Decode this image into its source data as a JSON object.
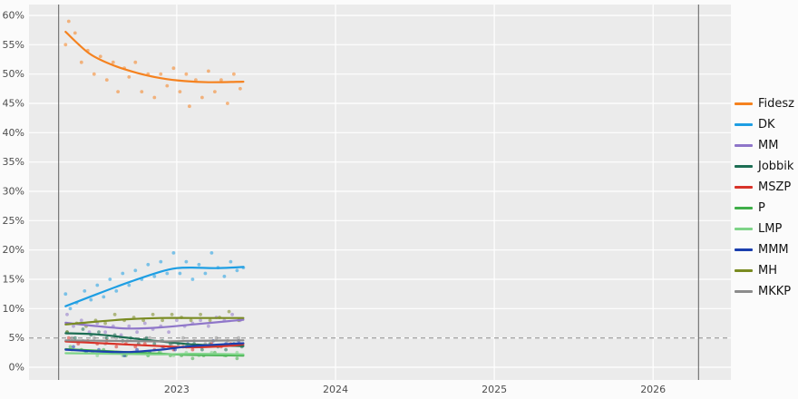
{
  "chart_data": {
    "type": "scatter",
    "title": "",
    "xlabel": "",
    "ylabel": "",
    "ylim": [
      0,
      60
    ],
    "xlim": [
      2022.07,
      2026.49
    ],
    "y_ticks": [
      0,
      5,
      10,
      15,
      20,
      25,
      30,
      35,
      40,
      45,
      50,
      55,
      60
    ],
    "y_tick_suffix": "%",
    "x_ticks": [
      2023,
      2024,
      2025,
      2026
    ],
    "threshold_y": 5,
    "event_lines_x": [
      2022.257,
      2026.286
    ],
    "grid": true,
    "legend_position": "right",
    "panel_bg": "#ebebeb",
    "grid_color": "#ffffff",
    "tick_label_color": "#4d4d4d",
    "threshold_color": "#a8a8a8",
    "event_line_color": "#5f5f5f",
    "series": [
      {
        "name": "Fidesz",
        "color": "#f5821f",
        "trend": [
          [
            2022.3,
            57.2
          ],
          [
            2022.45,
            53.5
          ],
          [
            2022.6,
            51.5
          ],
          [
            2022.75,
            50.2
          ],
          [
            2022.9,
            49.3
          ],
          [
            2023.05,
            48.8
          ],
          [
            2023.2,
            48.6
          ],
          [
            2023.42,
            48.7
          ]
        ],
        "points": [
          [
            2022.3,
            55
          ],
          [
            2022.32,
            59
          ],
          [
            2022.36,
            57
          ],
          [
            2022.4,
            52
          ],
          [
            2022.44,
            54
          ],
          [
            2022.48,
            50
          ],
          [
            2022.52,
            53
          ],
          [
            2022.56,
            49
          ],
          [
            2022.6,
            52
          ],
          [
            2022.63,
            47
          ],
          [
            2022.67,
            51
          ],
          [
            2022.7,
            49.5
          ],
          [
            2022.74,
            52
          ],
          [
            2022.78,
            47
          ],
          [
            2022.82,
            50
          ],
          [
            2022.86,
            46
          ],
          [
            2022.9,
            50
          ],
          [
            2022.94,
            48
          ],
          [
            2022.98,
            51
          ],
          [
            2023.02,
            47
          ],
          [
            2023.06,
            50
          ],
          [
            2023.08,
            44.5
          ],
          [
            2023.12,
            49
          ],
          [
            2023.16,
            46
          ],
          [
            2023.2,
            50.5
          ],
          [
            2023.24,
            47
          ],
          [
            2023.28,
            49
          ],
          [
            2023.32,
            45
          ],
          [
            2023.36,
            50
          ],
          [
            2023.4,
            47.5
          ]
        ]
      },
      {
        "name": "DK",
        "color": "#1e9ee3",
        "trend": [
          [
            2022.3,
            10.4
          ],
          [
            2022.5,
            12.5
          ],
          [
            2022.7,
            14.5
          ],
          [
            2022.9,
            16.3
          ],
          [
            2023.0,
            16.9
          ],
          [
            2023.1,
            17.0
          ],
          [
            2023.25,
            16.9
          ],
          [
            2023.42,
            17.1
          ]
        ],
        "points": [
          [
            2022.3,
            12.5
          ],
          [
            2022.33,
            10
          ],
          [
            2022.37,
            11
          ],
          [
            2022.42,
            13
          ],
          [
            2022.46,
            11.5
          ],
          [
            2022.5,
            14
          ],
          [
            2022.54,
            12
          ],
          [
            2022.58,
            15
          ],
          [
            2022.62,
            13
          ],
          [
            2022.66,
            16
          ],
          [
            2022.7,
            14
          ],
          [
            2022.74,
            16.5
          ],
          [
            2022.78,
            15
          ],
          [
            2022.82,
            17.5
          ],
          [
            2022.86,
            15.5
          ],
          [
            2022.9,
            18
          ],
          [
            2022.94,
            16
          ],
          [
            2022.98,
            19.5
          ],
          [
            2023.02,
            16
          ],
          [
            2023.06,
            18
          ],
          [
            2023.1,
            15
          ],
          [
            2023.14,
            17.5
          ],
          [
            2023.18,
            16
          ],
          [
            2023.22,
            19.5
          ],
          [
            2023.26,
            17
          ],
          [
            2023.3,
            15.5
          ],
          [
            2023.34,
            18
          ],
          [
            2023.38,
            16.5
          ],
          [
            2023.42,
            17
          ]
        ]
      },
      {
        "name": "MM",
        "color": "#8f76c9",
        "trend": [
          [
            2022.3,
            7.6
          ],
          [
            2022.5,
            7.0
          ],
          [
            2022.7,
            6.6
          ],
          [
            2022.9,
            6.8
          ],
          [
            2023.1,
            7.3
          ],
          [
            2023.42,
            8.1
          ]
        ],
        "points": [
          [
            2022.31,
            9
          ],
          [
            2022.35,
            7
          ],
          [
            2022.4,
            8
          ],
          [
            2022.45,
            6
          ],
          [
            2022.5,
            7.5
          ],
          [
            2022.55,
            6
          ],
          [
            2022.6,
            7
          ],
          [
            2022.65,
            5.5
          ],
          [
            2022.7,
            7
          ],
          [
            2022.75,
            6
          ],
          [
            2022.8,
            7.5
          ],
          [
            2022.85,
            6.5
          ],
          [
            2022.9,
            7
          ],
          [
            2022.95,
            6
          ],
          [
            2023.0,
            8
          ],
          [
            2023.05,
            7
          ],
          [
            2023.1,
            7.5
          ],
          [
            2023.15,
            8
          ],
          [
            2023.2,
            7
          ],
          [
            2023.25,
            8.5
          ],
          [
            2023.3,
            8
          ],
          [
            2023.35,
            9
          ],
          [
            2023.4,
            8
          ]
        ]
      },
      {
        "name": "Jobbik",
        "color": "#1d6e54",
        "trend": [
          [
            2022.3,
            5.8
          ],
          [
            2022.5,
            5.6
          ],
          [
            2022.7,
            5.0
          ],
          [
            2022.9,
            4.4
          ],
          [
            2023.1,
            3.9
          ],
          [
            2023.42,
            3.6
          ]
        ],
        "points": [
          [
            2022.31,
            6
          ],
          [
            2022.36,
            5
          ],
          [
            2022.41,
            6.5
          ],
          [
            2022.46,
            5.5
          ],
          [
            2022.51,
            6
          ],
          [
            2022.56,
            5
          ],
          [
            2022.61,
            5.5
          ],
          [
            2022.66,
            4.5
          ],
          [
            2022.71,
            5
          ],
          [
            2022.76,
            4
          ],
          [
            2022.81,
            5
          ],
          [
            2022.86,
            4
          ],
          [
            2022.91,
            4.5
          ],
          [
            2022.96,
            4
          ],
          [
            2023.01,
            4
          ],
          [
            2023.06,
            3.5
          ],
          [
            2023.11,
            4
          ],
          [
            2023.16,
            3
          ],
          [
            2023.21,
            4
          ],
          [
            2023.26,
            3.5
          ],
          [
            2023.31,
            3
          ],
          [
            2023.36,
            4
          ],
          [
            2023.41,
            3.5
          ]
        ]
      },
      {
        "name": "MSZP",
        "color": "#d8332a",
        "trend": [
          [
            2022.3,
            4.4
          ],
          [
            2022.6,
            4.0
          ],
          [
            2022.9,
            3.6
          ],
          [
            2023.1,
            3.4
          ],
          [
            2023.3,
            3.6
          ],
          [
            2023.42,
            3.9
          ]
        ],
        "points": [
          [
            2022.32,
            5
          ],
          [
            2022.38,
            4
          ],
          [
            2022.44,
            4.5
          ],
          [
            2022.5,
            4
          ],
          [
            2022.56,
            4.5
          ],
          [
            2022.62,
            3.5
          ],
          [
            2022.68,
            4
          ],
          [
            2022.74,
            3.5
          ],
          [
            2022.8,
            4
          ],
          [
            2022.86,
            3
          ],
          [
            2022.92,
            3.5
          ],
          [
            2022.98,
            3
          ],
          [
            2023.04,
            3.5
          ],
          [
            2023.1,
            3
          ],
          [
            2023.16,
            3.5
          ],
          [
            2023.22,
            4
          ],
          [
            2023.28,
            3.5
          ],
          [
            2023.34,
            4
          ],
          [
            2023.4,
            4
          ]
        ]
      },
      {
        "name": "P",
        "color": "#3fae49",
        "trend": [
          [
            2022.3,
            3.1
          ],
          [
            2022.6,
            2.7
          ],
          [
            2022.9,
            2.3
          ],
          [
            2023.1,
            2.1
          ],
          [
            2023.42,
            2.0
          ]
        ],
        "points": [
          [
            2022.33,
            3.5
          ],
          [
            2022.4,
            3
          ],
          [
            2022.47,
            2.5
          ],
          [
            2022.54,
            3
          ],
          [
            2022.61,
            2.5
          ],
          [
            2022.68,
            2
          ],
          [
            2022.75,
            2.5
          ],
          [
            2022.82,
            2
          ],
          [
            2022.89,
            2.5
          ],
          [
            2022.96,
            2
          ],
          [
            2023.03,
            2
          ],
          [
            2023.1,
            1.5
          ],
          [
            2023.17,
            2
          ],
          [
            2023.24,
            2.5
          ],
          [
            2023.31,
            2
          ],
          [
            2023.38,
            1.5
          ]
        ]
      },
      {
        "name": "LMP",
        "color": "#7ed488",
        "trend": [
          [
            2022.3,
            2.4
          ],
          [
            2022.6,
            2.3
          ],
          [
            2022.9,
            2.2
          ],
          [
            2023.1,
            2.3
          ],
          [
            2023.42,
            2.2
          ]
        ],
        "points": [
          [
            2022.34,
            3
          ],
          [
            2022.42,
            2.5
          ],
          [
            2022.5,
            2
          ],
          [
            2022.58,
            2.5
          ],
          [
            2022.66,
            2
          ],
          [
            2022.74,
            2.5
          ],
          [
            2022.82,
            2
          ],
          [
            2022.9,
            2.5
          ],
          [
            2022.98,
            2
          ],
          [
            2023.06,
            2.5
          ],
          [
            2023.14,
            2
          ],
          [
            2023.22,
            2.5
          ],
          [
            2023.3,
            2
          ],
          [
            2023.38,
            2.5
          ]
        ]
      },
      {
        "name": "MMM",
        "color": "#1b3fae",
        "trend": [
          [
            2022.3,
            3.0
          ],
          [
            2022.5,
            2.7
          ],
          [
            2022.7,
            2.6
          ],
          [
            2022.9,
            3.0
          ],
          [
            2023.1,
            3.6
          ],
          [
            2023.42,
            4.1
          ]
        ],
        "points": [
          [
            2022.35,
            3.5
          ],
          [
            2022.43,
            2.5
          ],
          [
            2022.51,
            3
          ],
          [
            2022.59,
            2.5
          ],
          [
            2022.67,
            2
          ],
          [
            2022.75,
            3
          ],
          [
            2022.83,
            2.5
          ],
          [
            2022.91,
            3.5
          ],
          [
            2022.99,
            3
          ],
          [
            2023.07,
            4
          ],
          [
            2023.15,
            3.5
          ],
          [
            2023.23,
            4.5
          ],
          [
            2023.31,
            4
          ],
          [
            2023.39,
            4.5
          ]
        ]
      },
      {
        "name": "MH",
        "color": "#7a8b22",
        "trend": [
          [
            2022.3,
            7.3
          ],
          [
            2022.5,
            7.8
          ],
          [
            2022.7,
            8.2
          ],
          [
            2022.9,
            8.4
          ],
          [
            2023.1,
            8.4
          ],
          [
            2023.42,
            8.4
          ]
        ],
        "points": [
          [
            2022.31,
            6
          ],
          [
            2022.37,
            7.5
          ],
          [
            2022.43,
            7
          ],
          [
            2022.49,
            8
          ],
          [
            2022.55,
            7.5
          ],
          [
            2022.61,
            9
          ],
          [
            2022.67,
            8
          ],
          [
            2022.73,
            8.5
          ],
          [
            2022.79,
            8
          ],
          [
            2022.85,
            9
          ],
          [
            2022.91,
            8
          ],
          [
            2022.97,
            9
          ],
          [
            2023.03,
            8.5
          ],
          [
            2023.09,
            8
          ],
          [
            2023.15,
            9
          ],
          [
            2023.21,
            8
          ],
          [
            2023.27,
            8.5
          ],
          [
            2023.33,
            9.5
          ],
          [
            2023.39,
            8
          ]
        ]
      },
      {
        "name": "MKKP",
        "color": "#8c8c8c",
        "trend": [
          [
            2022.3,
            4.6
          ],
          [
            2022.6,
            4.5
          ],
          [
            2022.9,
            4.4
          ],
          [
            2023.1,
            4.5
          ],
          [
            2023.42,
            4.6
          ]
        ],
        "points": [
          [
            2022.34,
            5
          ],
          [
            2022.41,
            4.5
          ],
          [
            2022.48,
            5
          ],
          [
            2022.55,
            4
          ],
          [
            2022.62,
            5
          ],
          [
            2022.69,
            4.5
          ],
          [
            2022.76,
            4
          ],
          [
            2022.83,
            5
          ],
          [
            2022.9,
            4.5
          ],
          [
            2022.97,
            4
          ],
          [
            2023.04,
            5
          ],
          [
            2023.11,
            4.5
          ],
          [
            2023.18,
            4
          ],
          [
            2023.25,
            5
          ],
          [
            2023.32,
            4.5
          ],
          [
            2023.39,
            5
          ]
        ]
      }
    ]
  }
}
